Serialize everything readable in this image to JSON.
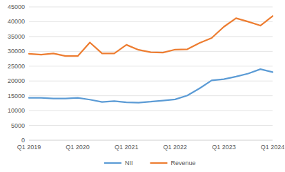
{
  "chart_data": {
    "type": "line",
    "categories": [
      "Q1 2019",
      null,
      null,
      null,
      "Q1 2020",
      null,
      null,
      null,
      "Q1 2021",
      null,
      null,
      null,
      "Q1 2022",
      null,
      null,
      null,
      "Q1 2023",
      null,
      null,
      null,
      "Q1 2024"
    ],
    "series": [
      {
        "name": "NII",
        "color": "#5b9bd5",
        "values": [
          14300,
          14300,
          14100,
          14100,
          14300,
          13700,
          12900,
          13200,
          12800,
          12700,
          13000,
          13400,
          13800,
          15100,
          17500,
          20200,
          20600,
          21500,
          22500,
          24000,
          23000
        ]
      },
      {
        "name": "Revenue",
        "color": "#ed7d31",
        "values": [
          29200,
          28900,
          29300,
          28400,
          28400,
          33000,
          29300,
          29300,
          32200,
          30500,
          29700,
          29600,
          30600,
          30700,
          32800,
          34500,
          38300,
          41200,
          40000,
          38700,
          41900
        ]
      }
    ],
    "ylim": [
      0,
      45000
    ],
    "yticks": [
      0,
      5000,
      10000,
      15000,
      20000,
      25000,
      30000,
      35000,
      40000,
      45000
    ],
    "grid": true,
    "legend": "bottom"
  }
}
